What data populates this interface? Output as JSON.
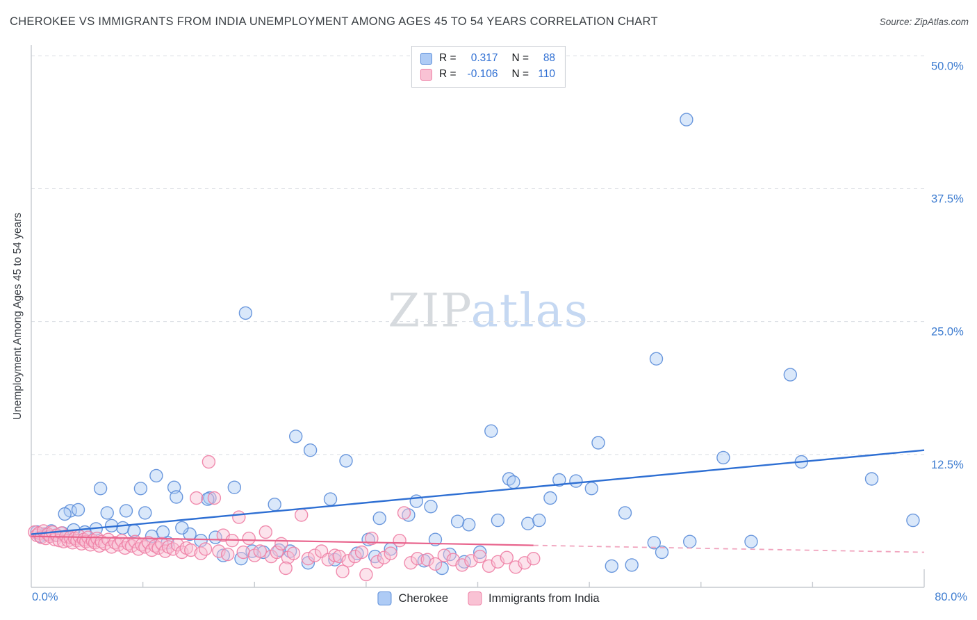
{
  "header": {
    "title": "CHEROKEE VS IMMIGRANTS FROM INDIA UNEMPLOYMENT AMONG AGES 45 TO 54 YEARS CORRELATION CHART",
    "source": "Source: ZipAtlas.com"
  },
  "stats_legend": {
    "rows": [
      {
        "r_label": "R =",
        "r_value": "0.317",
        "n_label": "N =",
        "n_value": "88"
      },
      {
        "r_label": "R =",
        "r_value": "-0.106",
        "n_label": "N =",
        "n_value": "110"
      }
    ]
  },
  "colors": {
    "accent_blue_text": "#3d7cd0",
    "cherokee_stroke": "#5b8dd9",
    "cherokee_fill": "#aecbf5",
    "india_stroke": "#ee7fa5",
    "india_fill": "#f9c2d4",
    "trend_blue": "#2e6fd3",
    "trend_pink": "#e8638c",
    "trend_pink_dashed": "#f0a3bd"
  },
  "chart_data": {
    "type": "scatter",
    "title": "CHEROKEE VS IMMIGRANTS FROM INDIA UNEMPLOYMENT AMONG AGES 45 TO 54 YEARS CORRELATION CHART",
    "xlabel": "",
    "ylabel": "Unemployment Among Ages 45 to 54 years",
    "xlim": [
      0,
      80
    ],
    "ylim": [
      0,
      51
    ],
    "grid": "horizontal-dashed",
    "legend_position": "bottom-center",
    "watermark": {
      "part1": "ZIP",
      "part2": "atlas"
    },
    "x_tick_labels": {
      "left": "0.0%",
      "right": "80.0%"
    },
    "y_ticks": [
      {
        "value": 12.5,
        "label": "12.5%"
      },
      {
        "value": 25,
        "label": "25.0%"
      },
      {
        "value": 37.5,
        "label": "37.5%"
      },
      {
        "value": 50,
        "label": "50.0%"
      }
    ],
    "series": [
      {
        "name": "Cherokee",
        "color": "#5b8dd9",
        "fill": "#aecbf5",
        "r": 0.317,
        "n": 88,
        "points": [
          [
            58.7,
            44.0
          ],
          [
            56.0,
            21.5
          ],
          [
            68.0,
            20.0
          ],
          [
            19.2,
            25.8
          ],
          [
            23.7,
            14.2
          ],
          [
            25.0,
            12.9
          ],
          [
            41.2,
            14.7
          ],
          [
            50.8,
            13.6
          ],
          [
            28.2,
            11.9
          ],
          [
            62.0,
            12.2
          ],
          [
            69.0,
            11.8
          ],
          [
            75.3,
            10.2
          ],
          [
            79.0,
            6.3
          ],
          [
            47.3,
            10.1
          ],
          [
            42.8,
            10.2
          ],
          [
            6.2,
            9.3
          ],
          [
            11.2,
            10.5
          ],
          [
            9.8,
            9.3
          ],
          [
            12.8,
            9.4
          ],
          [
            18.2,
            9.4
          ],
          [
            16.0,
            8.4
          ],
          [
            13.0,
            8.5
          ],
          [
            15.8,
            8.3
          ],
          [
            26.8,
            8.3
          ],
          [
            21.8,
            7.8
          ],
          [
            3.5,
            7.2
          ],
          [
            4.2,
            7.3
          ],
          [
            3.0,
            6.9
          ],
          [
            6.8,
            7.0
          ],
          [
            8.5,
            7.2
          ],
          [
            10.2,
            7.0
          ],
          [
            34.5,
            8.1
          ],
          [
            35.8,
            7.6
          ],
          [
            48.8,
            10.0
          ],
          [
            43.2,
            9.9
          ],
          [
            46.5,
            8.4
          ],
          [
            53.2,
            7.0
          ],
          [
            50.2,
            9.3
          ],
          [
            55.8,
            4.2
          ],
          [
            59.0,
            4.3
          ],
          [
            53.8,
            2.1
          ],
          [
            56.5,
            3.3
          ],
          [
            36.2,
            4.5
          ],
          [
            37.5,
            3.1
          ],
          [
            40.2,
            3.3
          ],
          [
            39.2,
            5.9
          ],
          [
            38.2,
            6.2
          ],
          [
            33.8,
            6.8
          ],
          [
            31.2,
            6.5
          ],
          [
            30.2,
            4.5
          ],
          [
            29.2,
            3.2
          ],
          [
            27.2,
            2.6
          ],
          [
            24.8,
            2.3
          ],
          [
            23.2,
            3.4
          ],
          [
            22.2,
            3.5
          ],
          [
            20.8,
            3.3
          ],
          [
            19.8,
            3.4
          ],
          [
            18.8,
            2.7
          ],
          [
            17.2,
            3.0
          ],
          [
            16.5,
            4.7
          ],
          [
            15.2,
            4.4
          ],
          [
            14.2,
            5.0
          ],
          [
            13.5,
            5.6
          ],
          [
            12.2,
            4.2
          ],
          [
            11.8,
            5.2
          ],
          [
            10.8,
            4.8
          ],
          [
            9.2,
            5.3
          ],
          [
            8.2,
            5.6
          ],
          [
            7.2,
            5.8
          ],
          [
            5.8,
            5.5
          ],
          [
            4.8,
            5.2
          ],
          [
            3.8,
            5.4
          ],
          [
            2.8,
            5.1
          ],
          [
            2.2,
            4.9
          ],
          [
            1.8,
            5.3
          ],
          [
            1.2,
            5.0
          ],
          [
            0.8,
            4.8
          ],
          [
            0.5,
            5.2
          ],
          [
            30.8,
            2.9
          ],
          [
            32.2,
            3.6
          ],
          [
            35.2,
            2.5
          ],
          [
            44.5,
            6.0
          ],
          [
            45.5,
            6.3
          ],
          [
            41.8,
            6.3
          ],
          [
            38.8,
            2.4
          ],
          [
            36.8,
            1.8
          ],
          [
            52.0,
            2.0
          ],
          [
            64.5,
            4.3
          ]
        ]
      },
      {
        "name": "Immigrants from India",
        "color": "#ee7fa5",
        "fill": "#f9c2d4",
        "r": -0.106,
        "n": 110,
        "points": [
          [
            0.3,
            5.2
          ],
          [
            0.5,
            4.9
          ],
          [
            0.7,
            5.1
          ],
          [
            0.9,
            4.7
          ],
          [
            1.1,
            5.3
          ],
          [
            1.3,
            4.6
          ],
          [
            1.5,
            5.0
          ],
          [
            1.7,
            4.8
          ],
          [
            1.9,
            5.2
          ],
          [
            2.1,
            4.5
          ],
          [
            2.3,
            4.9
          ],
          [
            2.5,
            4.4
          ],
          [
            2.7,
            5.1
          ],
          [
            2.9,
            4.3
          ],
          [
            3.1,
            4.8
          ],
          [
            3.3,
            4.4
          ],
          [
            3.5,
            4.7
          ],
          [
            3.7,
            4.2
          ],
          [
            3.9,
            4.6
          ],
          [
            4.1,
            4.4
          ],
          [
            4.3,
            4.8
          ],
          [
            4.5,
            4.1
          ],
          [
            4.7,
            4.5
          ],
          [
            4.9,
            4.3
          ],
          [
            5.1,
            4.7
          ],
          [
            5.3,
            4.0
          ],
          [
            5.5,
            4.4
          ],
          [
            5.7,
            4.2
          ],
          [
            5.9,
            4.6
          ],
          [
            6.1,
            3.9
          ],
          [
            6.3,
            4.3
          ],
          [
            6.6,
            4.1
          ],
          [
            6.9,
            4.5
          ],
          [
            7.2,
            3.8
          ],
          [
            7.5,
            4.2
          ],
          [
            7.8,
            4.0
          ],
          [
            8.1,
            4.4
          ],
          [
            8.4,
            3.7
          ],
          [
            8.7,
            4.1
          ],
          [
            9.0,
            3.9
          ],
          [
            9.3,
            4.3
          ],
          [
            9.6,
            3.6
          ],
          [
            9.9,
            4.0
          ],
          [
            10.2,
            3.8
          ],
          [
            10.5,
            4.2
          ],
          [
            10.8,
            3.5
          ],
          [
            11.1,
            3.9
          ],
          [
            11.4,
            3.7
          ],
          [
            11.7,
            4.1
          ],
          [
            12.0,
            3.4
          ],
          [
            12.3,
            3.8
          ],
          [
            12.7,
            3.6
          ],
          [
            13.1,
            4.0
          ],
          [
            13.5,
            3.3
          ],
          [
            13.9,
            3.7
          ],
          [
            14.3,
            3.5
          ],
          [
            14.8,
            8.4
          ],
          [
            15.2,
            3.2
          ],
          [
            15.6,
            3.6
          ],
          [
            15.9,
            11.8
          ],
          [
            16.4,
            8.4
          ],
          [
            16.8,
            3.4
          ],
          [
            17.2,
            4.9
          ],
          [
            17.6,
            3.1
          ],
          [
            18.0,
            4.4
          ],
          [
            18.6,
            6.6
          ],
          [
            19.0,
            3.3
          ],
          [
            19.5,
            4.6
          ],
          [
            20.0,
            3.0
          ],
          [
            20.5,
            3.4
          ],
          [
            21.0,
            5.2
          ],
          [
            21.5,
            2.9
          ],
          [
            22.0,
            3.3
          ],
          [
            22.4,
            4.1
          ],
          [
            23.0,
            2.8
          ],
          [
            23.5,
            3.2
          ],
          [
            24.2,
            6.8
          ],
          [
            24.8,
            2.7
          ],
          [
            25.4,
            3.0
          ],
          [
            26.0,
            3.4
          ],
          [
            26.6,
            2.6
          ],
          [
            27.2,
            3.0
          ],
          [
            27.6,
            2.9
          ],
          [
            28.4,
            2.5
          ],
          [
            29.0,
            2.9
          ],
          [
            29.6,
            3.3
          ],
          [
            30.5,
            4.6
          ],
          [
            31.0,
            2.4
          ],
          [
            31.6,
            2.8
          ],
          [
            32.2,
            3.2
          ],
          [
            33.0,
            4.4
          ],
          [
            33.4,
            7.0
          ],
          [
            34.0,
            2.3
          ],
          [
            34.6,
            2.7
          ],
          [
            35.5,
            2.6
          ],
          [
            36.2,
            2.2
          ],
          [
            37.0,
            3.0
          ],
          [
            37.8,
            2.6
          ],
          [
            38.6,
            2.1
          ],
          [
            39.4,
            2.5
          ],
          [
            40.2,
            2.9
          ],
          [
            41.0,
            2.0
          ],
          [
            41.8,
            2.4
          ],
          [
            42.6,
            2.8
          ],
          [
            43.4,
            1.9
          ],
          [
            44.2,
            2.3
          ],
          [
            45.0,
            2.7
          ],
          [
            27.9,
            1.5
          ],
          [
            22.8,
            1.8
          ],
          [
            30.0,
            1.2
          ]
        ]
      }
    ],
    "trend_lines": [
      {
        "series": "Cherokee",
        "style": "solid",
        "x1": 0,
        "y1": 5.0,
        "x2": 80,
        "y2": 12.9,
        "color": "#2e6fd3",
        "width": 2.4
      },
      {
        "series": "Immigrants-from-India",
        "style": "solid",
        "x1": 0,
        "y1": 4.8,
        "x2": 45,
        "y2": 3.95,
        "color": "#e8638c",
        "width": 2.2
      },
      {
        "series": "Immigrants-from-India",
        "style": "dashed",
        "x1": 45,
        "y1": 3.95,
        "x2": 80,
        "y2": 3.3,
        "color": "#f0a3bd",
        "width": 1.8
      }
    ]
  }
}
